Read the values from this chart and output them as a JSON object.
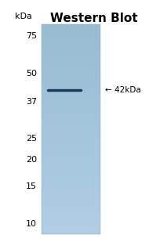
{
  "title": "Western Blot",
  "title_fontsize": 11,
  "title_fontweight": "bold",
  "background_color": "#ffffff",
  "gel_bg_color": "#a8c8de",
  "band_color": "#1a3a5c",
  "band_linewidth": 2.5,
  "annotation_text": "← 42kDa",
  "annotation_fontsize": 7.5,
  "ylabel": "kDa",
  "ylabel_fontsize": 8,
  "y_ticks": [
    75,
    50,
    37,
    25,
    20,
    15,
    10
  ],
  "band_kda": 42,
  "ymin": 9,
  "ymax": 85,
  "tick_fontsize": 8,
  "gel_color": "#a8c8de"
}
